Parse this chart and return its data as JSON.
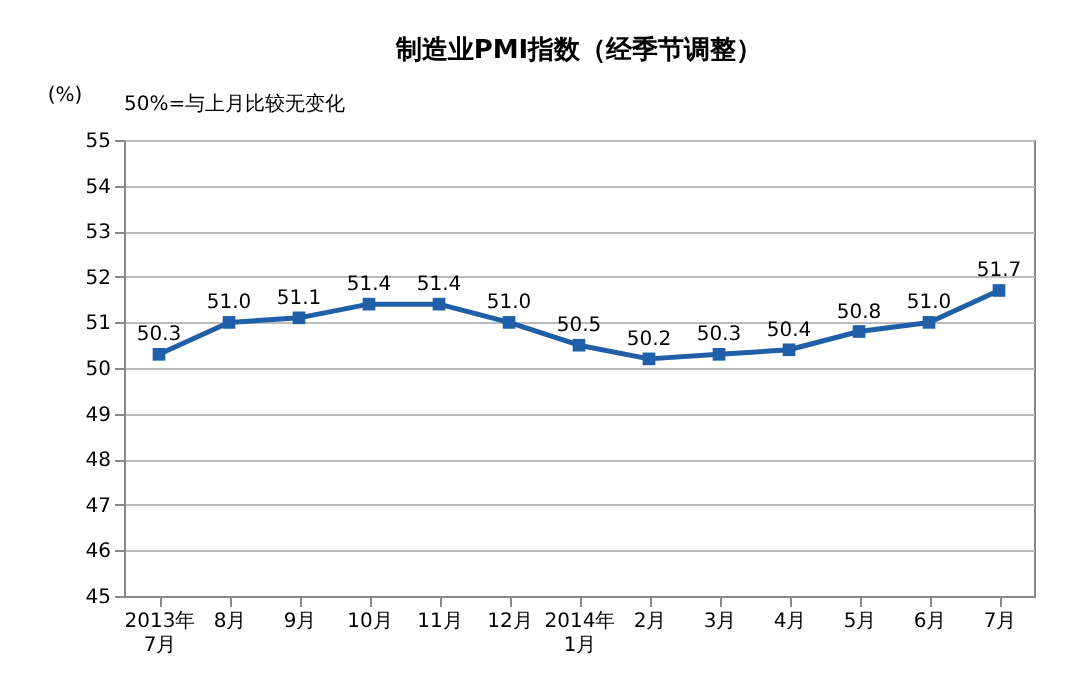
{
  "chart_data": {
    "type": "line",
    "title": "制造业PMI指数（经季节调整）",
    "ylabel": "(%)",
    "annotations": [
      "50%=与上月比较无变化"
    ],
    "categories": [
      "2013年\n7月",
      "8月",
      "9月",
      "10月",
      "11月",
      "12月",
      "2014年\n1月",
      "2月",
      "3月",
      "4月",
      "5月",
      "6月",
      "7月"
    ],
    "series": [
      {
        "color": "#1f5fa8",
        "values": [
          50.3,
          51.0,
          51.1,
          51.4,
          51.4,
          51.0,
          50.5,
          50.2,
          50.3,
          50.4,
          50.8,
          51.0,
          51.7
        ],
        "value_labels": [
          "50.3",
          "51.0",
          "51.1",
          "51.4",
          "51.4",
          "51.0",
          "50.5",
          "50.2",
          "50.3",
          "50.4",
          "50.8",
          "51.0",
          "51.7"
        ]
      }
    ],
    "ylim": [
      45,
      55
    ],
    "yticks": [
      45,
      46,
      47,
      48,
      49,
      50,
      51,
      52,
      53,
      54,
      55
    ],
    "grid": "y",
    "marker": "square",
    "line_style": "solid"
  }
}
